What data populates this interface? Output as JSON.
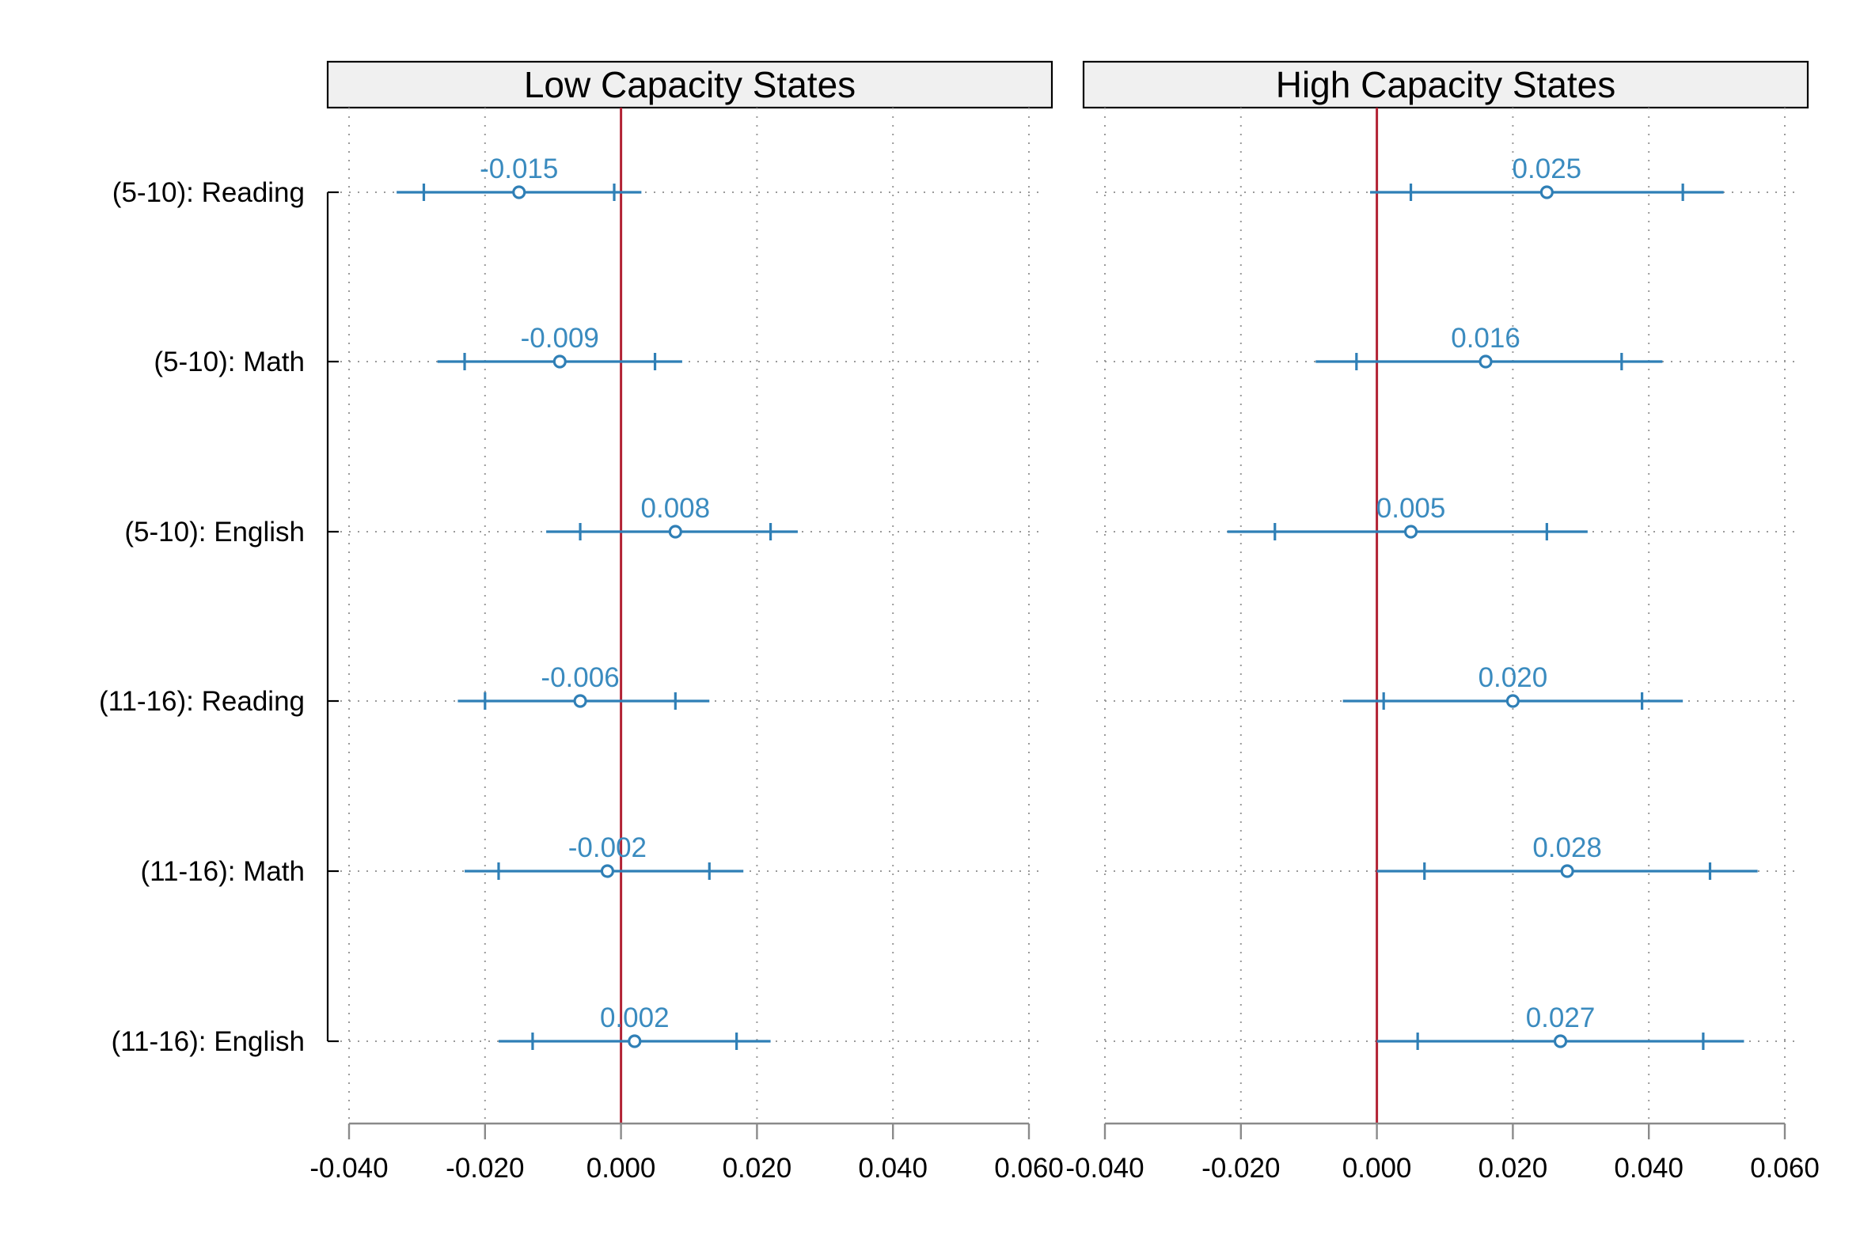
{
  "chart_data": [
    {
      "type": "scatter",
      "title": "Low Capacity States",
      "categories": [
        "(5-10): Reading",
        "(5-10): Math",
        "(5-10): English",
        "(11-16): Reading",
        "(11-16): Math",
        "(11-16): English"
      ],
      "estimates": [
        -0.015,
        -0.009,
        0.008,
        -0.006,
        -0.002,
        0.002
      ],
      "value_labels": [
        "-0.015",
        "-0.009",
        "0.008",
        "-0.006",
        "-0.002",
        "0.002"
      ],
      "ci_outer": [
        [
          -0.033,
          0.003
        ],
        [
          -0.027,
          0.009
        ],
        [
          -0.011,
          0.026
        ],
        [
          -0.024,
          0.013
        ],
        [
          -0.023,
          0.018
        ],
        [
          -0.018,
          0.022
        ]
      ],
      "ci_inner": [
        [
          -0.029,
          -0.001
        ],
        [
          -0.023,
          0.005
        ],
        [
          -0.006,
          0.022
        ],
        [
          -0.02,
          0.008
        ],
        [
          -0.018,
          0.013
        ],
        [
          -0.013,
          0.017
        ]
      ],
      "xlim": [
        -0.04,
        0.06
      ],
      "xticks": [
        -0.04,
        -0.02,
        0.0,
        0.02,
        0.04,
        0.06
      ],
      "xtick_labels": [
        "-0.040",
        "-0.020",
        "0.000",
        "0.020",
        "0.040",
        "0.060"
      ],
      "reference_line": 0,
      "grid": true
    },
    {
      "type": "scatter",
      "title": "High Capacity States",
      "categories": [
        "(5-10): Reading",
        "(5-10): Math",
        "(5-10): English",
        "(11-16): Reading",
        "(11-16): Math",
        "(11-16): English"
      ],
      "estimates": [
        0.025,
        0.016,
        0.005,
        0.02,
        0.028,
        0.027
      ],
      "value_labels": [
        "0.025",
        "0.016",
        "0.005",
        "0.020",
        "0.028",
        "0.027"
      ],
      "ci_outer": [
        [
          -0.001,
          0.051
        ],
        [
          -0.009,
          0.042
        ],
        [
          -0.022,
          0.031
        ],
        [
          -0.005,
          0.045
        ],
        [
          0.0,
          0.056
        ],
        [
          0.0,
          0.054
        ]
      ],
      "ci_inner": [
        [
          0.005,
          0.045
        ],
        [
          -0.003,
          0.036
        ],
        [
          -0.015,
          0.025
        ],
        [
          0.001,
          0.039
        ],
        [
          0.007,
          0.049
        ],
        [
          0.006,
          0.048
        ]
      ],
      "xlim": [
        -0.04,
        0.06
      ],
      "xticks": [
        -0.04,
        -0.02,
        0.0,
        0.02,
        0.04,
        0.06
      ],
      "xtick_labels": [
        "-0.040",
        "-0.020",
        "0.000",
        "0.020",
        "0.040",
        "0.060"
      ],
      "reference_line": 0,
      "grid": true
    }
  ],
  "colors": {
    "series": "#2f7fb6",
    "value_label": "#3a8bbf",
    "reference_line": "#b22234",
    "title_box": "#f0f0f0"
  }
}
